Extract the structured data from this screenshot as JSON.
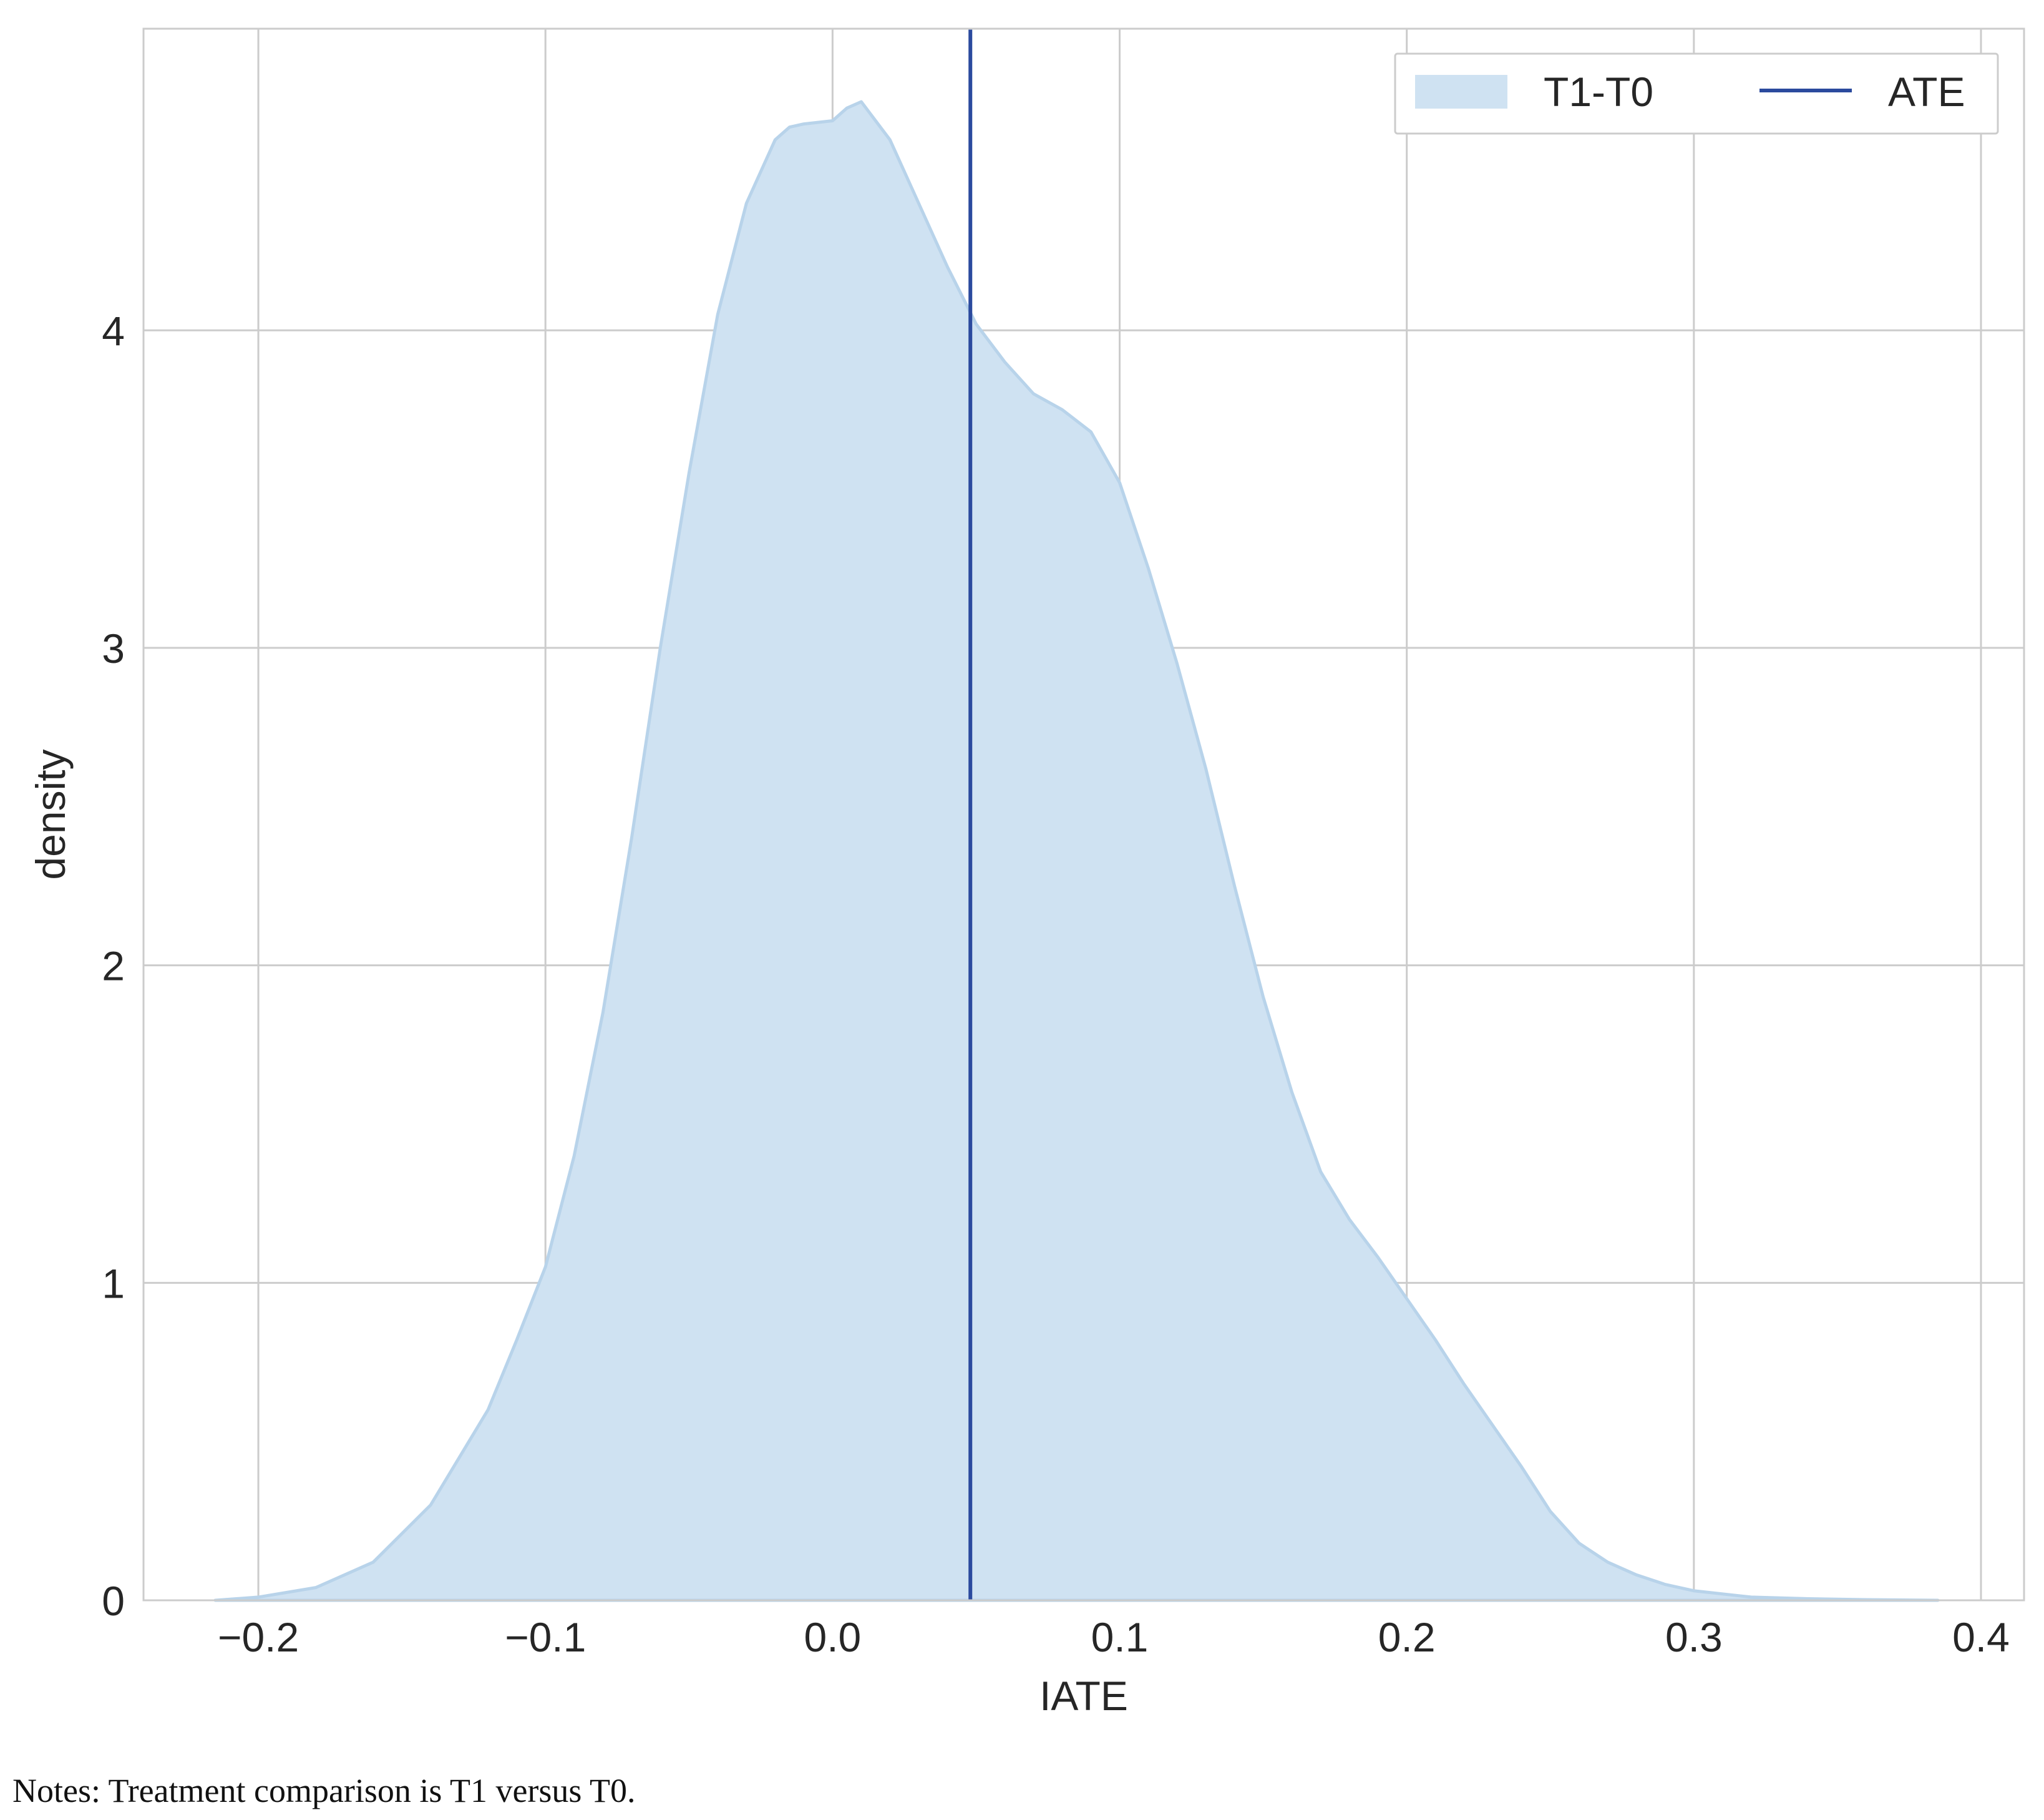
{
  "chart_data": {
    "type": "area",
    "xlabel": "IATE",
    "ylabel": "density",
    "xlim": [
      -0.24,
      0.415
    ],
    "ylim": [
      0,
      4.95
    ],
    "xticks": [
      -0.2,
      -0.1,
      0.0,
      0.1,
      0.2,
      0.3,
      0.4
    ],
    "xtick_labels": [
      "−0.2",
      "−0.1",
      "0.0",
      "0.1",
      "0.2",
      "0.3",
      "0.4"
    ],
    "yticks": [
      0,
      1,
      2,
      3,
      4
    ],
    "ytick_labels": [
      "0",
      "1",
      "2",
      "3",
      "4"
    ],
    "grid": true,
    "legend_position": "top-right",
    "series": [
      {
        "name": "T1-T0",
        "kind": "density",
        "color": "#cfe2f2",
        "edge_color": "#b8d3ea",
        "x": [
          -0.215,
          -0.2,
          -0.18,
          -0.16,
          -0.14,
          -0.12,
          -0.11,
          -0.1,
          -0.09,
          -0.08,
          -0.07,
          -0.06,
          -0.05,
          -0.04,
          -0.03,
          -0.02,
          -0.015,
          -0.01,
          0.0,
          0.005,
          0.01,
          0.02,
          0.03,
          0.04,
          0.05,
          0.06,
          0.07,
          0.08,
          0.09,
          0.1,
          0.11,
          0.12,
          0.13,
          0.14,
          0.15,
          0.16,
          0.17,
          0.18,
          0.19,
          0.2,
          0.21,
          0.22,
          0.23,
          0.24,
          0.25,
          0.26,
          0.27,
          0.28,
          0.29,
          0.3,
          0.31,
          0.32,
          0.34,
          0.36,
          0.385
        ],
        "y": [
          0.0,
          0.01,
          0.04,
          0.12,
          0.3,
          0.6,
          0.82,
          1.05,
          1.4,
          1.85,
          2.4,
          3.0,
          3.55,
          4.05,
          4.4,
          4.6,
          4.64,
          4.65,
          4.66,
          4.7,
          4.72,
          4.6,
          4.4,
          4.2,
          4.02,
          3.9,
          3.8,
          3.75,
          3.68,
          3.52,
          3.25,
          2.95,
          2.62,
          2.25,
          1.9,
          1.6,
          1.35,
          1.2,
          1.08,
          0.95,
          0.82,
          0.68,
          0.55,
          0.42,
          0.28,
          0.18,
          0.12,
          0.08,
          0.05,
          0.03,
          0.02,
          0.01,
          0.005,
          0.002,
          0.0
        ]
      },
      {
        "name": "ATE",
        "kind": "vline",
        "x": 0.048,
        "color": "#2b4a9e"
      }
    ]
  },
  "notes": "Notes: Treatment comparison is T1 versus T0."
}
